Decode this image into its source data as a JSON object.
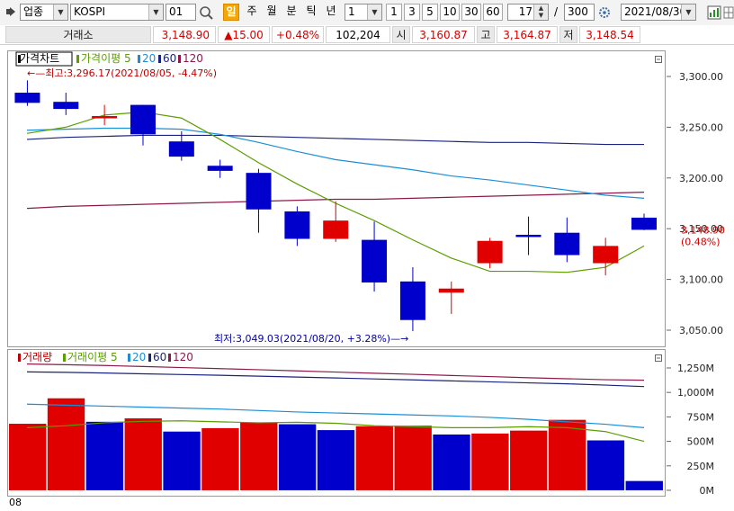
{
  "toolbar": {
    "market_select": "업종",
    "index_name": "KOSPI",
    "code": "01",
    "period_active": "일",
    "periods": [
      "주",
      "월",
      "분",
      "틱",
      "년"
    ],
    "interval_select": "1",
    "interval_buttons": [
      "1",
      "3",
      "5",
      "10",
      "30",
      "60"
    ],
    "display_count": "17",
    "separator": "/",
    "total_count": "300",
    "date": "2021/08/30"
  },
  "quote": {
    "exchange": "거래소",
    "last_price": "3,148.90",
    "change": "▲15.00",
    "change_rate": "+0.48%",
    "volume": "102,204",
    "open_label": "시",
    "open": "3,160.87",
    "high_label": "고",
    "high": "3,164.87",
    "low_label": "저",
    "low": "3,148.54"
  },
  "price_panel": {
    "legend_title": "가격차트",
    "legend_ma": "가격이평",
    "ma_periods": [
      "5",
      "20",
      "60",
      "120"
    ],
    "high_annotation": "←—최고:3,296.17(2021/08/05, -4.47%)",
    "low_annotation": "최저:3,049.03(2021/08/20, +3.28%)—→",
    "current_label": "3,148.90",
    "current_rate": "(0.48%)",
    "y_ticks": [
      "3,300.00",
      "3,250.00",
      "3,200.00",
      "3,150.00",
      "3,100.00",
      "3,050.00"
    ]
  },
  "volume_panel": {
    "legend_title": "거래량",
    "legend_ma": "거래이평",
    "ma_periods": [
      "5",
      "20",
      "60",
      "120"
    ],
    "y_ticks": [
      "1,250M",
      "1,000M",
      "750M",
      "500M",
      "250M",
      "0M"
    ]
  },
  "x_axis": {
    "month_label": "08"
  },
  "colors": {
    "up": "#e00000",
    "down": "#0000cc",
    "ma5": "#5a9e00",
    "ma20": "#1a8fd8",
    "ma60": "#1a237e",
    "ma120": "#8b1a4a"
  },
  "chart_data": [
    {
      "type": "candlestick",
      "title": "가격차트",
      "ylim": [
        3030,
        3330
      ],
      "candles": [
        {
          "o": 3284,
          "h": 3296.2,
          "l": 3271,
          "c": 3274
        },
        {
          "o": 3275,
          "h": 3284,
          "l": 3262,
          "c": 3268
        },
        {
          "o": 3259,
          "h": 3272,
          "l": 3252,
          "c": 3261
        },
        {
          "o": 3272,
          "h": 3272,
          "l": 3232,
          "c": 3243
        },
        {
          "o": 3236,
          "h": 3246,
          "l": 3217,
          "c": 3221
        },
        {
          "o": 3212,
          "h": 3218,
          "l": 3200,
          "c": 3207
        },
        {
          "o": 3205,
          "h": 3209,
          "l": 3146,
          "c": 3169
        },
        {
          "o": 3167,
          "h": 3172,
          "l": 3133,
          "c": 3140
        },
        {
          "o": 3140,
          "h": 3177,
          "l": 3137,
          "c": 3158
        },
        {
          "o": 3139,
          "h": 3157,
          "l": 3088,
          "c": 3097
        },
        {
          "o": 3098,
          "h": 3112,
          "l": 3049.03,
          "c": 3060
        },
        {
          "o": 3087,
          "h": 3098,
          "l": 3066,
          "c": 3091
        },
        {
          "o": 3116,
          "h": 3141,
          "l": 3111,
          "c": 3138
        },
        {
          "o": 3144,
          "h": 3162,
          "l": 3124,
          "c": 3142
        },
        {
          "o": 3146,
          "h": 3161,
          "l": 3117,
          "c": 3124
        },
        {
          "o": 3116,
          "h": 3141,
          "l": 3104,
          "c": 3133
        },
        {
          "o": 3160.87,
          "h": 3164.87,
          "l": 3148.54,
          "c": 3148.9
        }
      ],
      "ma5": [
        3244,
        3250,
        3262,
        3265,
        3259,
        3238,
        3215,
        3194,
        3175,
        3158,
        3139,
        3121,
        3108,
        3108,
        3107,
        3112,
        3133
      ],
      "ma20": [
        3247,
        3248,
        3249,
        3249,
        3248,
        3243,
        3235,
        3226,
        3218,
        3213,
        3208,
        3202,
        3198,
        3193,
        3188,
        3183,
        3180
      ],
      "ma60": [
        3238,
        3240,
        3241,
        3242,
        3242,
        3242,
        3241,
        3240,
        3239,
        3238,
        3237,
        3236,
        3235,
        3235,
        3234,
        3233,
        3233
      ],
      "ma120": [
        3170,
        3172,
        3173,
        3174,
        3175,
        3176,
        3177,
        3178,
        3179,
        3179,
        3180,
        3181,
        3182,
        3183,
        3184,
        3185,
        3186
      ]
    },
    {
      "type": "bar",
      "title": "거래량",
      "ylim": [
        0,
        1400
      ],
      "unit": "M",
      "values": [
        680,
        940,
        700,
        735,
        600,
        635,
        690,
        675,
        615,
        655,
        660,
        570,
        580,
        610,
        720,
        510,
        95
      ],
      "directions": [
        "up",
        "up",
        "down",
        "up",
        "down",
        "up",
        "up",
        "down",
        "down",
        "up",
        "up",
        "down",
        "up",
        "up",
        "up",
        "down",
        "down"
      ],
      "ma5": [
        640,
        660,
        690,
        705,
        710,
        700,
        690,
        695,
        685,
        660,
        650,
        640,
        640,
        650,
        640,
        600,
        500
      ],
      "ma20": [
        880,
        870,
        860,
        850,
        840,
        830,
        815,
        800,
        790,
        780,
        770,
        760,
        745,
        725,
        700,
        675,
        640
      ],
      "ma60": [
        1210,
        1205,
        1198,
        1190,
        1183,
        1175,
        1166,
        1157,
        1148,
        1138,
        1128,
        1118,
        1108,
        1098,
        1088,
        1075,
        1060
      ],
      "ma120": [
        1290,
        1283,
        1275,
        1265,
        1254,
        1243,
        1232,
        1220,
        1208,
        1196,
        1185,
        1173,
        1162,
        1150,
        1140,
        1130,
        1125
      ]
    }
  ]
}
